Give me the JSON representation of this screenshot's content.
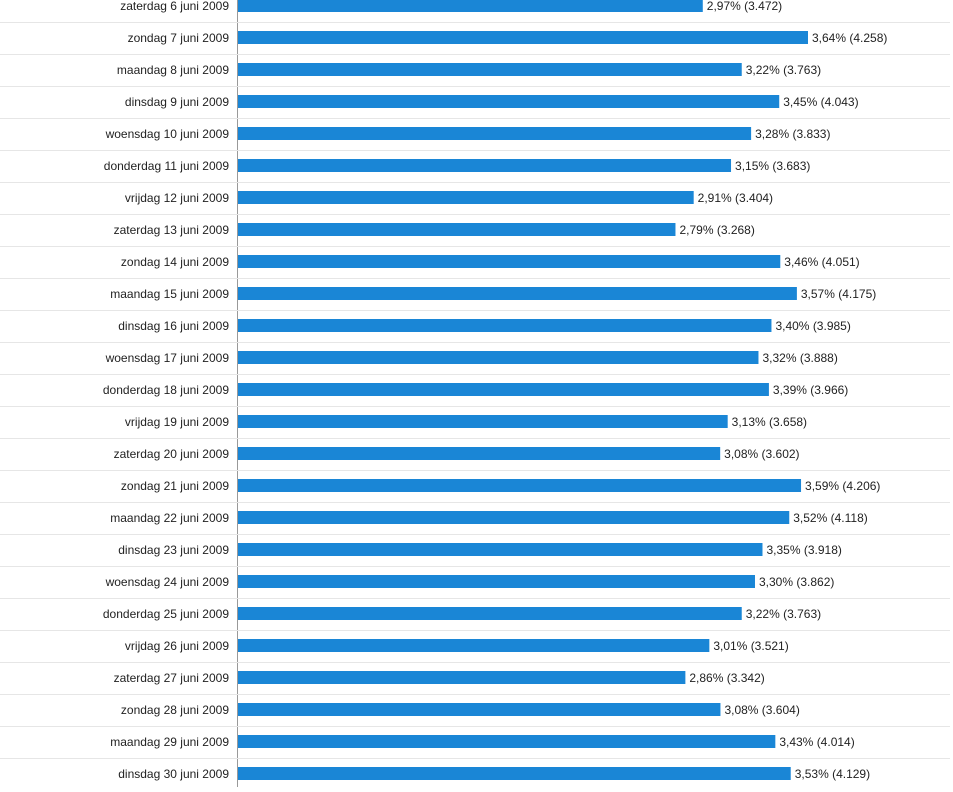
{
  "chart_data": {
    "type": "bar",
    "orientation": "horizontal",
    "color": "#1a86d6",
    "categories": [
      "zaterdag 6 juni 2009",
      "zondag 7 juni 2009",
      "maandag 8 juni 2009",
      "dinsdag 9 juni 2009",
      "woensdag 10 juni 2009",
      "donderdag 11 juni 2009",
      "vrijdag 12 juni 2009",
      "zaterdag 13 juni 2009",
      "zondag 14 juni 2009",
      "maandag 15 juni 2009",
      "dinsdag 16 juni 2009",
      "woensdag 17 juni 2009",
      "donderdag 18 juni 2009",
      "vrijdag 19 juni 2009",
      "zaterdag 20 juni 2009",
      "zondag 21 juni 2009",
      "maandag 22 juni 2009",
      "dinsdag 23 juni 2009",
      "woensdag 24 juni 2009",
      "donderdag 25 juni 2009",
      "vrijdag 26 juni 2009",
      "zaterdag 27 juni 2009",
      "zondag 28 juni 2009",
      "maandag 29 juni 2009",
      "dinsdag 30 juni 2009"
    ],
    "values": [
      3472,
      4258,
      3763,
      4043,
      3833,
      3683,
      3404,
      3268,
      4051,
      4175,
      3985,
      3888,
      3966,
      3658,
      3602,
      4206,
      4118,
      3918,
      3862,
      3763,
      3521,
      3342,
      3604,
      4014,
      4129
    ],
    "value_labels": [
      "2,97% (3.472)",
      "3,64% (4.258)",
      "3,22% (3.763)",
      "3,45% (4.043)",
      "3,28% (3.833)",
      "3,15% (3.683)",
      "2,91% (3.404)",
      "2,79% (3.268)",
      "3,46% (4.051)",
      "3,57% (4.175)",
      "3,40% (3.985)",
      "3,32% (3.888)",
      "3,39% (3.966)",
      "3,13% (3.658)",
      "3,08% (3.602)",
      "3,59% (4.206)",
      "3,52% (4.118)",
      "3,35% (3.918)",
      "3,30% (3.862)",
      "3,22% (3.763)",
      "3,01% (3.521)",
      "2,86% (3.342)",
      "3,08% (3.604)",
      "3,43% (4.014)",
      "3,53% (4.129)"
    ]
  }
}
